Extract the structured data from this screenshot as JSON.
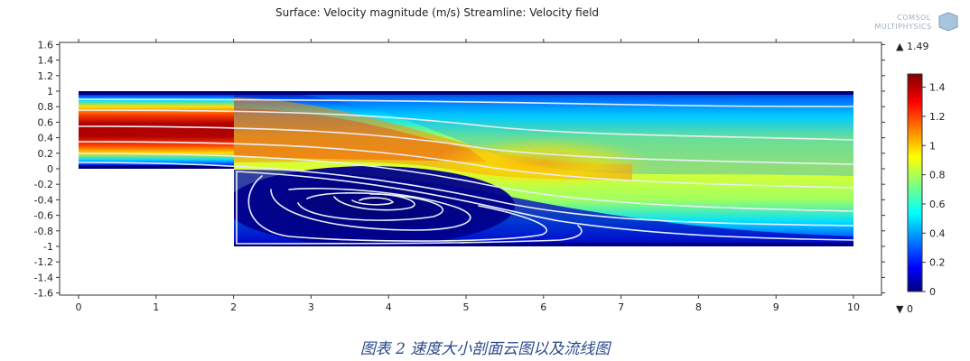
{
  "header": {
    "title": "Surface: Velocity magnitude (m/s)  Streamline: Velocity field",
    "brand_line1": "COMSOL",
    "brand_line2": "MULTIPHYSICS"
  },
  "caption": "图表 2 速度大小剖面云图以及流线图",
  "colorbar": {
    "max_label": "▲ 1.49",
    "min_label": "▼ 0",
    "ticks": [
      "1.4",
      "1.2",
      "1",
      "0.8",
      "0.6",
      "0.4",
      "0.2",
      "0"
    ],
    "colors": [
      "#00007f",
      "#0000ff",
      "#00ffff",
      "#ffff00",
      "#ff0000",
      "#7f0000"
    ]
  },
  "chart_data": {
    "type": "heatmap",
    "title": "Surface: Velocity magnitude (m/s)  Streamline: Velocity field",
    "quantity": "Velocity magnitude (m/s)",
    "overlay": "Streamline: Velocity field",
    "xlim": [
      -0.2,
      10.4
    ],
    "ylim": [
      -1.65,
      1.65
    ],
    "x_ticks": [
      "0",
      "1",
      "2",
      "3",
      "4",
      "5",
      "6",
      "7",
      "8",
      "9",
      "10"
    ],
    "y_ticks": [
      "1.6",
      "1.4",
      "1.2",
      "1",
      "0.8",
      "0.6",
      "0.4",
      "0.2",
      "0",
      "-0.2",
      "-0.4",
      "-0.6",
      "-0.8",
      "-1",
      "-1.2",
      "-1.4",
      "-1.6"
    ],
    "value_range": [
      0,
      1.49
    ],
    "colorbar_ticks": [
      1.4,
      1.2,
      1,
      0.8,
      0.6,
      0.4,
      0.2,
      0
    ],
    "geometry": "backward-facing step: inlet channel y 0 to 1 for x 0 to 2, expanded channel y -1 to 1 for x 2 to 10",
    "max_velocity": 1.49,
    "recirculation_center": [
      4.0,
      -0.42
    ]
  }
}
